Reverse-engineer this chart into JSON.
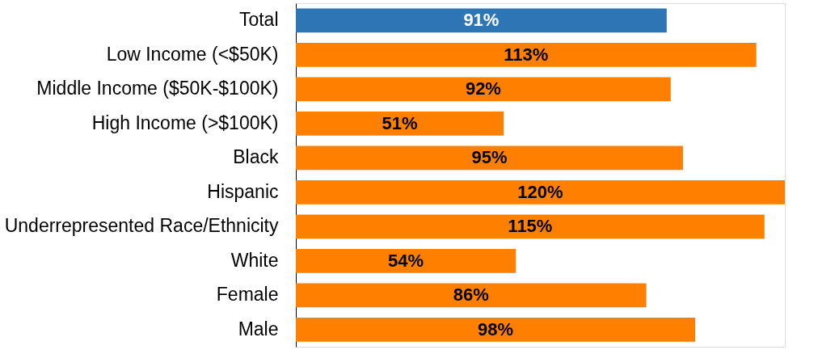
{
  "chart_data": {
    "type": "bar",
    "orientation": "horizontal",
    "categories": [
      "Total",
      "Low Income (<$50K)",
      "Middle Income ($50K-$100K)",
      "High Income (>$100K)",
      "Black",
      "Hispanic",
      "Underrepresented Race/Ethnicity",
      "White",
      "Female",
      "Male"
    ],
    "values": [
      91,
      113,
      92,
      51,
      95,
      120,
      115,
      54,
      86,
      98
    ],
    "colors": [
      "#2e75b6",
      "#ff8000",
      "#ff8000",
      "#ff8000",
      "#ff8000",
      "#ff8000",
      "#ff8000",
      "#ff8000",
      "#ff8000",
      "#ff8000"
    ],
    "value_labels": [
      "91%",
      "113%",
      "92%",
      "51%",
      "95%",
      "120%",
      "115%",
      "54%",
      "86%",
      "98%"
    ],
    "grid": false
  }
}
